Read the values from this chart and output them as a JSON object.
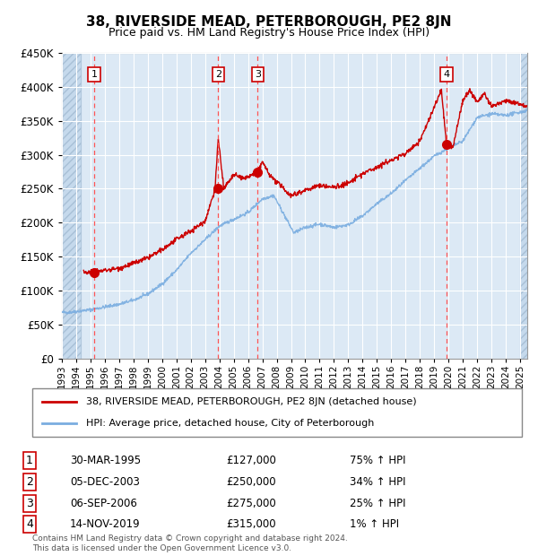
{
  "title": "38, RIVERSIDE MEAD, PETERBOROUGH, PE2 8JN",
  "subtitle": "Price paid vs. HM Land Registry's House Price Index (HPI)",
  "footer1": "Contains HM Land Registry data © Crown copyright and database right 2024.",
  "footer2": "This data is licensed under the Open Government Licence v3.0.",
  "legend_red": "38, RIVERSIDE MEAD, PETERBOROUGH, PE2 8JN (detached house)",
  "legend_blue": "HPI: Average price, detached house, City of Peterborough",
  "transactions": [
    {
      "num": 1,
      "date": "30-MAR-1995",
      "price": 127000,
      "pct": "75%",
      "dir": "↑",
      "year_x": 1995.25
    },
    {
      "num": 2,
      "date": "05-DEC-2003",
      "price": 250000,
      "pct": "34%",
      "dir": "↑",
      "year_x": 2003.92
    },
    {
      "num": 3,
      "date": "06-SEP-2006",
      "price": 275000,
      "pct": "25%",
      "dir": "↑",
      "year_x": 2006.68
    },
    {
      "num": 4,
      "date": "14-NOV-2019",
      "price": 315000,
      "pct": "1%",
      "dir": "↑",
      "year_x": 2019.87
    }
  ],
  "ylim": [
    0,
    450000
  ],
  "yticks": [
    0,
    50000,
    100000,
    150000,
    200000,
    250000,
    300000,
    350000,
    400000,
    450000
  ],
  "xlim_start": 1993.0,
  "xlim_end": 2025.5,
  "bg_color": "#dce9f5",
  "hatch_color": "#b8cfe0",
  "grid_color": "#ffffff",
  "red_color": "#cc0000",
  "blue_color": "#7aade0",
  "vline_color": "#ff5555"
}
